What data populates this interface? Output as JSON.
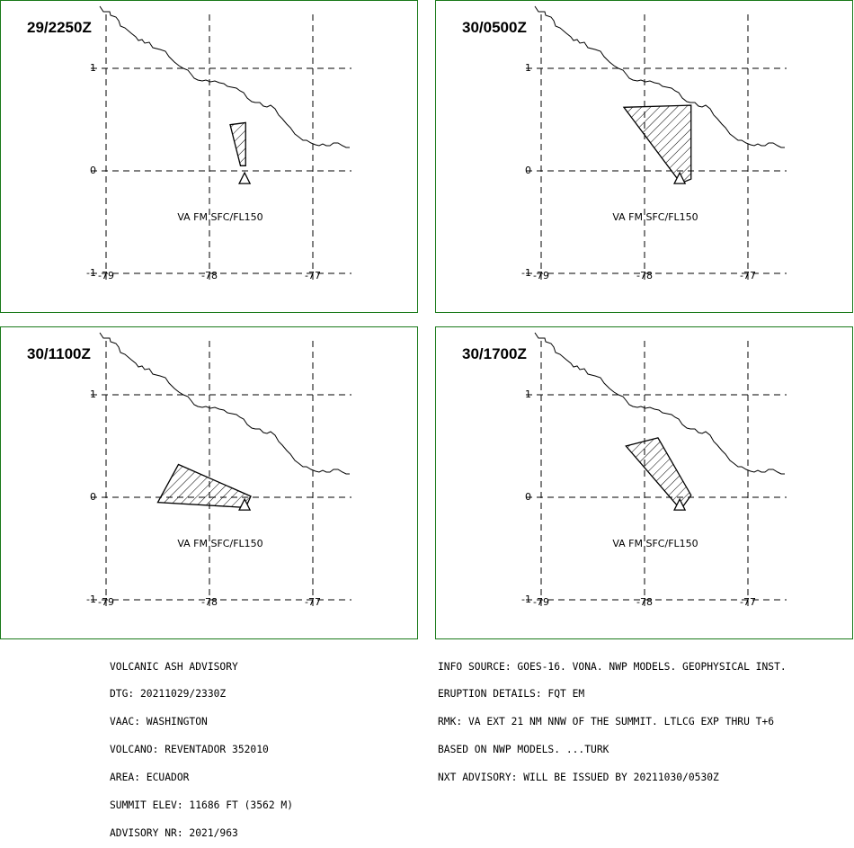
{
  "panels": [
    {
      "time": "29/2250Z",
      "va_label": "VA FM SFC/FL150",
      "ash_area": [
        [
          -77.8,
          0.45
        ],
        [
          -77.65,
          0.47
        ],
        [
          -77.65,
          0.05
        ],
        [
          -77.7,
          0.05
        ]
      ]
    },
    {
      "time": "30/0500Z",
      "va_label": "VA FM SFC/FL150",
      "ash_area": [
        [
          -78.2,
          0.62
        ],
        [
          -77.55,
          0.64
        ],
        [
          -77.55,
          -0.08
        ],
        [
          -77.65,
          -0.12
        ]
      ]
    },
    {
      "time": "30/1100Z",
      "va_label": "VA FM SFC/FL150",
      "ash_area": [
        [
          -78.3,
          0.32
        ],
        [
          -77.6,
          0.01
        ],
        [
          -77.65,
          -0.1
        ],
        [
          -78.5,
          -0.05
        ]
      ]
    },
    {
      "time": "30/1700Z",
      "va_label": "VA FM SFC/FL150",
      "ash_area": [
        [
          -78.18,
          0.5
        ],
        [
          -77.87,
          0.58
        ],
        [
          -77.55,
          0.02
        ],
        [
          -77.65,
          -0.12
        ]
      ]
    }
  ],
  "map": {
    "lon_ticks": [
      "-79",
      "-78",
      "-77"
    ],
    "lat_ticks": [
      "1",
      "0",
      "-1"
    ],
    "volcano_lonlat": [
      -77.66,
      -0.08
    ]
  },
  "advisory_left": [
    "VOLCANIC ASH ADVISORY",
    "DTG: 20211029/2330Z",
    "VAAC: WASHINGTON",
    "VOLCANO: REVENTADOR 352010",
    "AREA: ECUADOR",
    "SUMMIT ELEV: 11686 FT (3562 M)",
    "ADVISORY NR: 2021/963"
  ],
  "advisory_right": [
    "INFO SOURCE: GOES-16. VONA. NWP MODELS. GEOPHYSICAL INST.",
    "ERUPTION DETAILS: FQT EM",
    "RMK: VA EXT 21 NM NNW OF THE SUMMIT. LTLCG EXP THRU T+6",
    "BASED ON NWP MODELS. ...TURK",
    "NXT ADVISORY: WILL BE ISSUED BY 20211030/0530Z"
  ]
}
